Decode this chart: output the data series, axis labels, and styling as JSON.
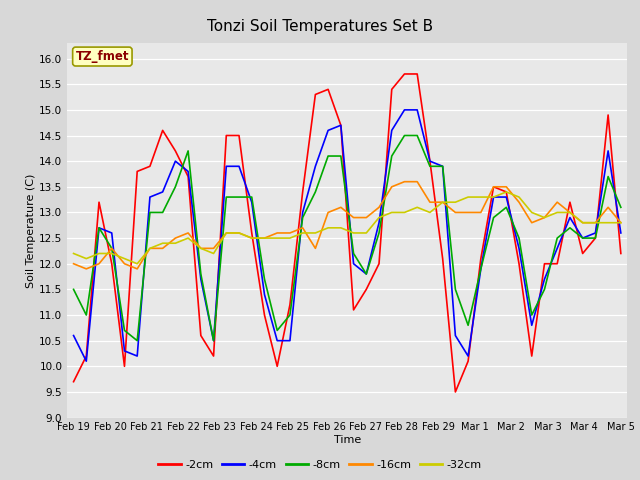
{
  "title": "Tonzi Soil Temperatures Set B",
  "xlabel": "Time",
  "ylabel": "Soil Temperature (C)",
  "ylim": [
    9.0,
    16.3
  ],
  "yticks": [
    9.0,
    9.5,
    10.0,
    10.5,
    11.0,
    11.5,
    12.0,
    12.5,
    13.0,
    13.5,
    14.0,
    14.5,
    15.0,
    15.5,
    16.0
  ],
  "background_color": "#d8d8d8",
  "plot_bg_color": "#e8e8e8",
  "annotation_text": "TZ_fmet",
  "annotation_color": "#8b0000",
  "annotation_bg": "#ffffc0",
  "legend_entries": [
    "-2cm",
    "-4cm",
    "-8cm",
    "-16cm",
    "-32cm"
  ],
  "line_colors": [
    "#ff0000",
    "#0000ff",
    "#00aa00",
    "#ff8800",
    "#cccc00"
  ],
  "line_width": 1.2,
  "x_labels": [
    "Feb 19",
    "Feb 20",
    "Feb 21",
    "Feb 22",
    "Feb 23",
    "Feb 24",
    "Feb 25",
    "Feb 26",
    "Feb 27",
    "Feb 28",
    "Feb 29",
    "Mar 1",
    "Mar 2",
    "Mar 3",
    "Mar 4",
    "Mar 5"
  ],
  "data_2cm": [
    9.7,
    10.2,
    13.2,
    12.0,
    10.0,
    13.8,
    13.9,
    14.6,
    14.2,
    13.7,
    10.6,
    10.2,
    14.5,
    14.5,
    12.6,
    11.0,
    10.0,
    11.2,
    13.4,
    15.3,
    15.4,
    14.7,
    11.1,
    11.5,
    12.0,
    15.4,
    15.7,
    15.7,
    14.0,
    12.1,
    9.5,
    10.1,
    12.1,
    13.5,
    13.4,
    12.0,
    10.2,
    12.0,
    12.0,
    13.2,
    12.2,
    12.5,
    14.9,
    12.2
  ],
  "data_4cm": [
    10.6,
    10.1,
    12.7,
    12.6,
    10.3,
    10.2,
    13.3,
    13.4,
    14.0,
    13.8,
    11.7,
    10.5,
    13.9,
    13.9,
    13.2,
    11.4,
    10.5,
    10.5,
    13.0,
    13.9,
    14.6,
    14.7,
    12.0,
    11.8,
    12.8,
    14.6,
    15.0,
    15.0,
    14.0,
    13.9,
    10.6,
    10.2,
    11.9,
    13.3,
    13.3,
    12.3,
    10.8,
    11.7,
    12.3,
    12.9,
    12.5,
    12.6,
    14.2,
    12.6
  ],
  "data_8cm": [
    11.5,
    11.0,
    12.7,
    12.3,
    10.7,
    10.5,
    13.0,
    13.0,
    13.5,
    14.2,
    11.8,
    10.5,
    13.3,
    13.3,
    13.3,
    11.7,
    10.7,
    11.0,
    12.9,
    13.4,
    14.1,
    14.1,
    12.2,
    11.8,
    12.6,
    14.1,
    14.5,
    14.5,
    13.9,
    13.9,
    11.5,
    10.8,
    11.9,
    12.9,
    13.1,
    12.5,
    11.0,
    11.5,
    12.5,
    12.7,
    12.5,
    12.5,
    13.7,
    13.1
  ],
  "data_16cm": [
    12.0,
    11.9,
    12.0,
    12.3,
    12.0,
    11.9,
    12.3,
    12.3,
    12.5,
    12.6,
    12.3,
    12.3,
    12.6,
    12.6,
    12.5,
    12.5,
    12.6,
    12.6,
    12.7,
    12.3,
    13.0,
    13.1,
    12.9,
    12.9,
    13.1,
    13.5,
    13.6,
    13.6,
    13.2,
    13.2,
    13.0,
    13.0,
    13.0,
    13.5,
    13.5,
    13.2,
    12.8,
    12.9,
    13.2,
    13.0,
    12.8,
    12.8,
    13.1,
    12.8
  ],
  "data_32cm": [
    12.2,
    12.1,
    12.2,
    12.2,
    12.1,
    12.0,
    12.3,
    12.4,
    12.4,
    12.5,
    12.3,
    12.2,
    12.6,
    12.6,
    12.5,
    12.5,
    12.5,
    12.5,
    12.6,
    12.6,
    12.7,
    12.7,
    12.6,
    12.6,
    12.9,
    13.0,
    13.0,
    13.1,
    13.0,
    13.2,
    13.2,
    13.3,
    13.3,
    13.3,
    13.4,
    13.3,
    13.0,
    12.9,
    13.0,
    13.0,
    12.8,
    12.8,
    12.8,
    12.8
  ]
}
